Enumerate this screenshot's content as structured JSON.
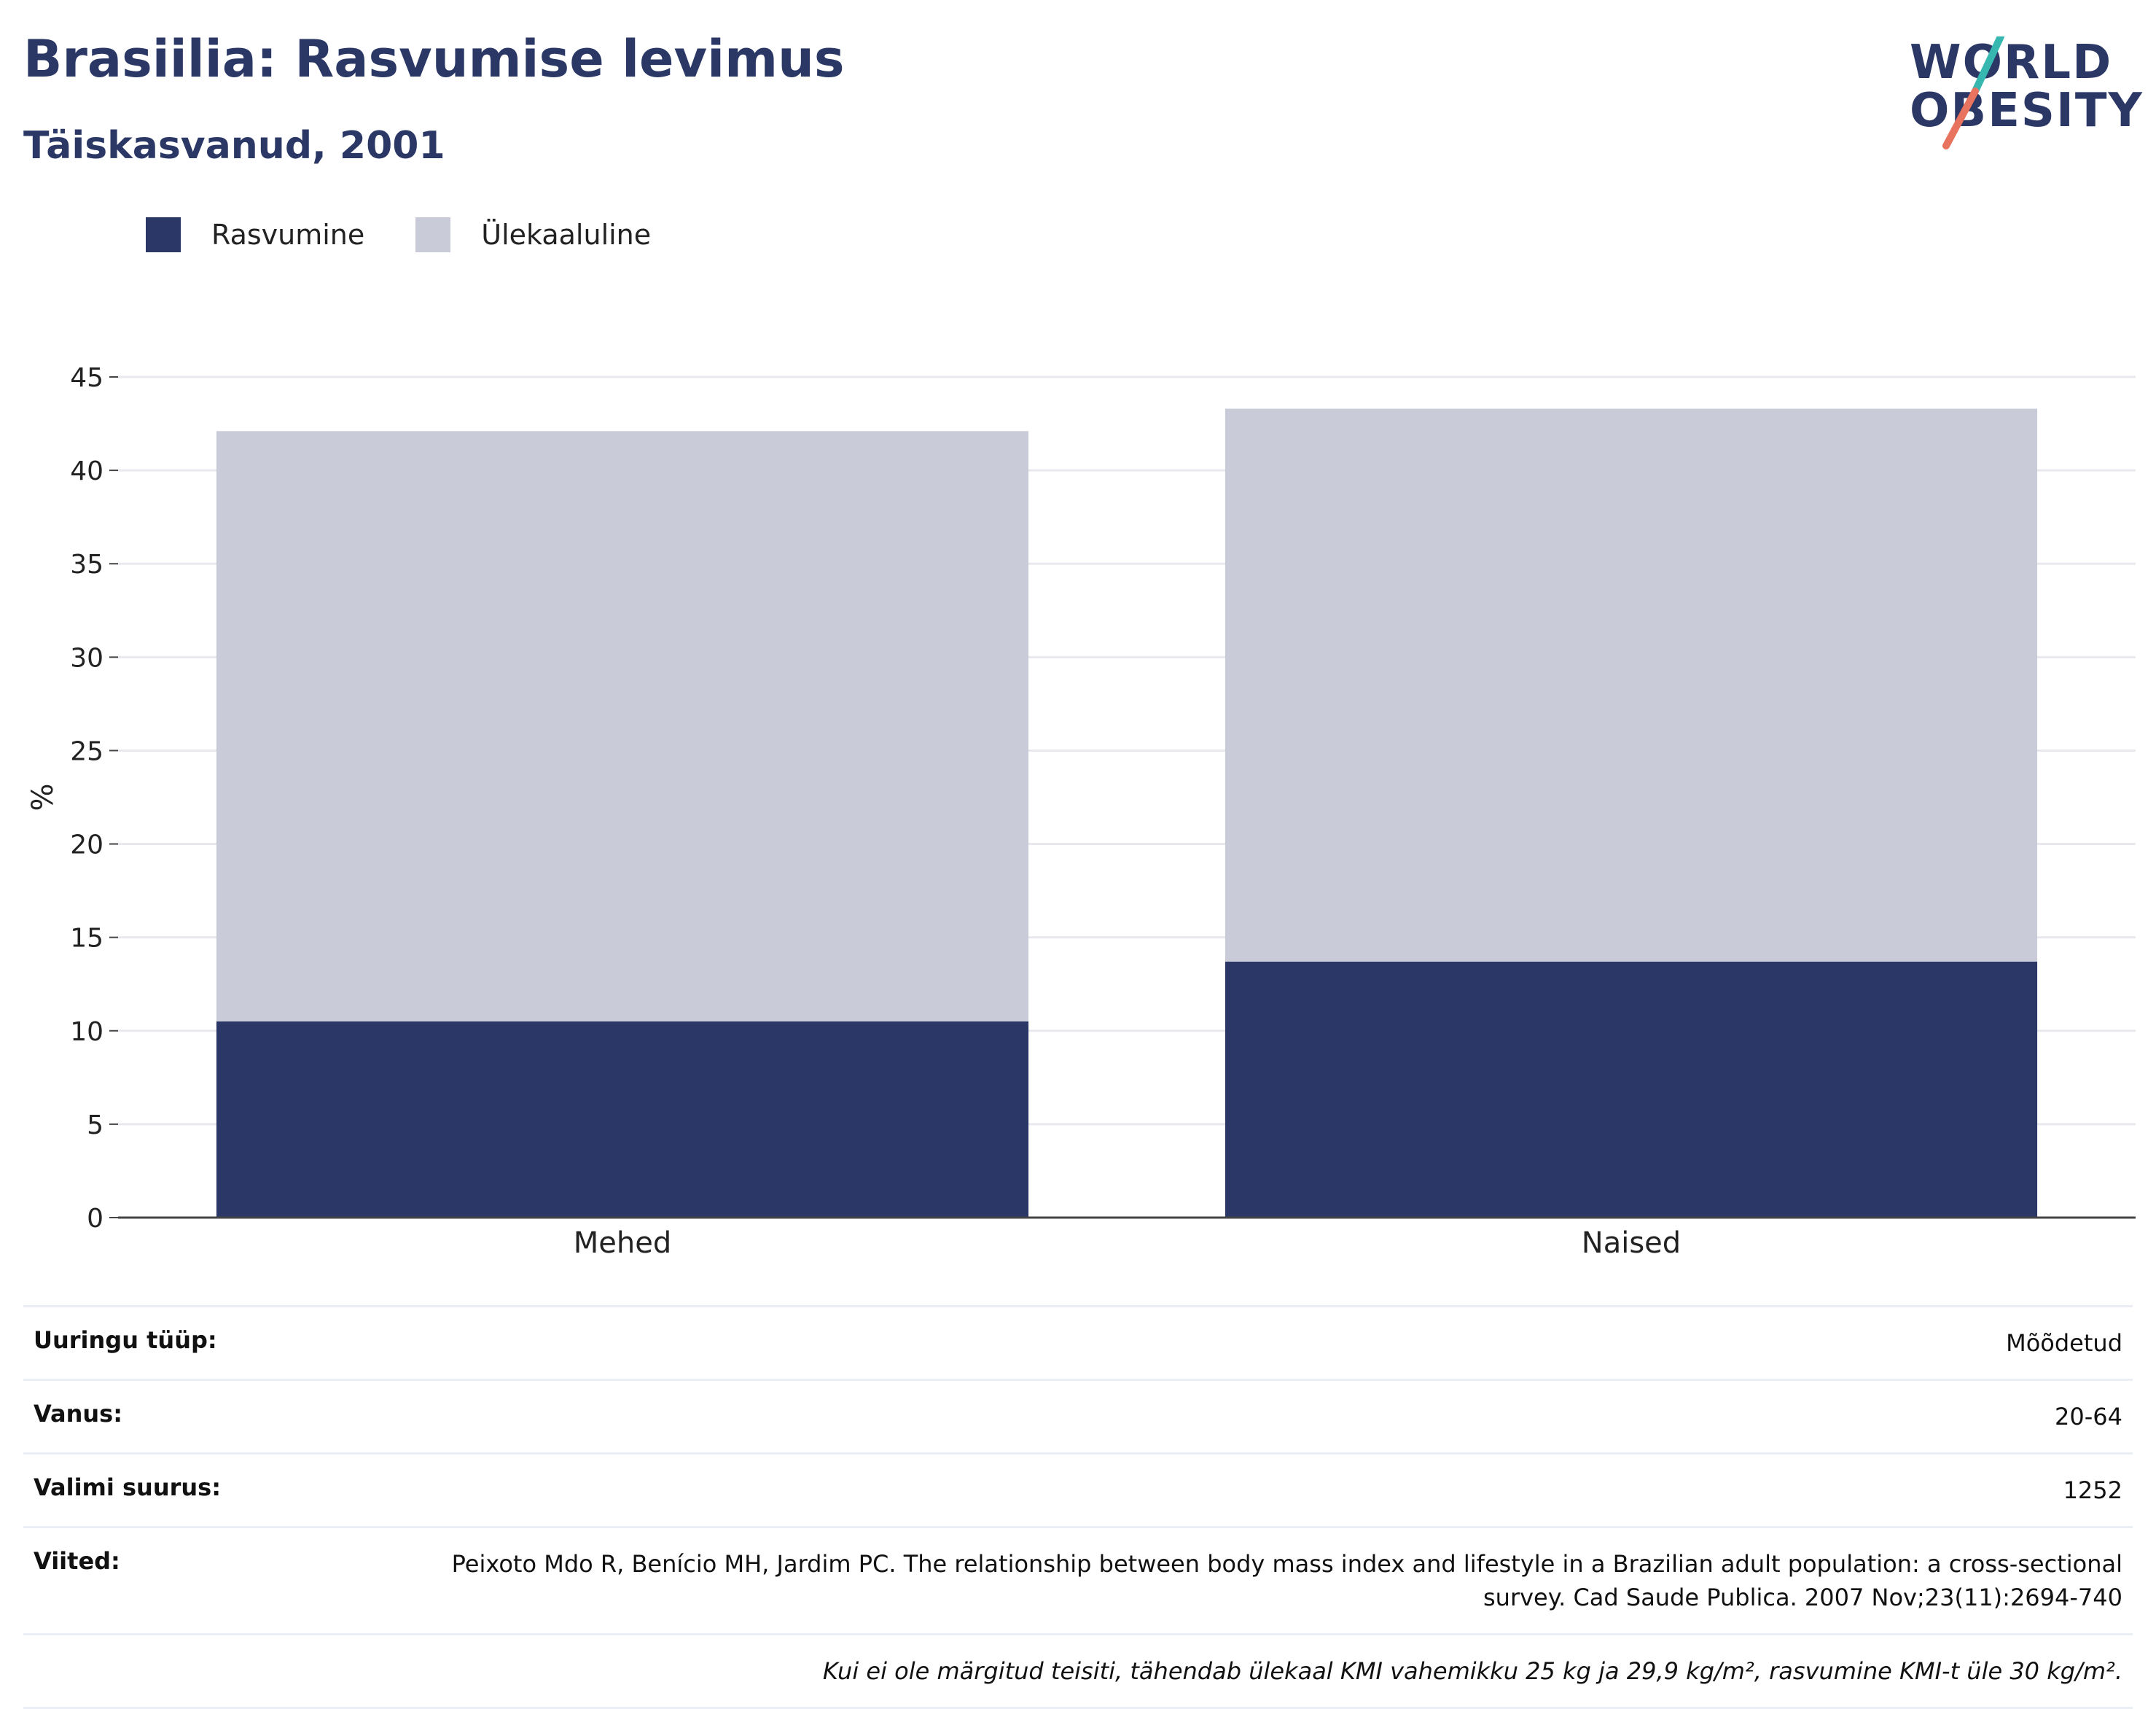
{
  "header": {
    "title": "Brasiilia: Rasvumise levimus",
    "subtitle": "Täiskasvanud, 2001"
  },
  "logo": {
    "line1": "WORLD",
    "line2": "OBESITY",
    "accent_colors": [
      "#36b8b0",
      "#e8735e"
    ]
  },
  "legend": [
    {
      "label": "Rasvumine",
      "color": "#2b3766"
    },
    {
      "label": "Ülekaaluline",
      "color": "#c9ccd8"
    }
  ],
  "chart_data": {
    "type": "bar",
    "stacked": true,
    "categories": [
      "Mehed",
      "Naised"
    ],
    "series": [
      {
        "name": "Rasvumine",
        "color": "#2b3766",
        "values": [
          10.5,
          13.7
        ]
      },
      {
        "name": "Ülekaaluline",
        "color": "#c9ccd8",
        "values": [
          31.6,
          29.6
        ]
      }
    ],
    "ylabel": "%",
    "ylim": [
      0,
      45
    ],
    "yticks": [
      0,
      5,
      10,
      15,
      20,
      25,
      30,
      35,
      40,
      45
    ],
    "grid": true,
    "legend_position": "top-left"
  },
  "info": {
    "rows": [
      {
        "key": "Uuringu tüüp:",
        "value": "Mõõdetud"
      },
      {
        "key": "Vanus:",
        "value": "20-64"
      },
      {
        "key": "Valimi suurus:",
        "value": "1252"
      },
      {
        "key": "Viited:",
        "value": "Peixoto Mdo R, Benício MH, Jardim PC. The relationship between body mass index and lifestyle in a Brazilian adult population: a cross-sectional survey. Cad Saude Publica. 2007 Nov;23(11):2694-740"
      }
    ],
    "note": "Kui ei ole märgitud teisiti, tähendab ülekaal KMI vahemikku 25 kg ja 29,9 kg/m², rasvumine KMI-t üle 30 kg/m²."
  }
}
